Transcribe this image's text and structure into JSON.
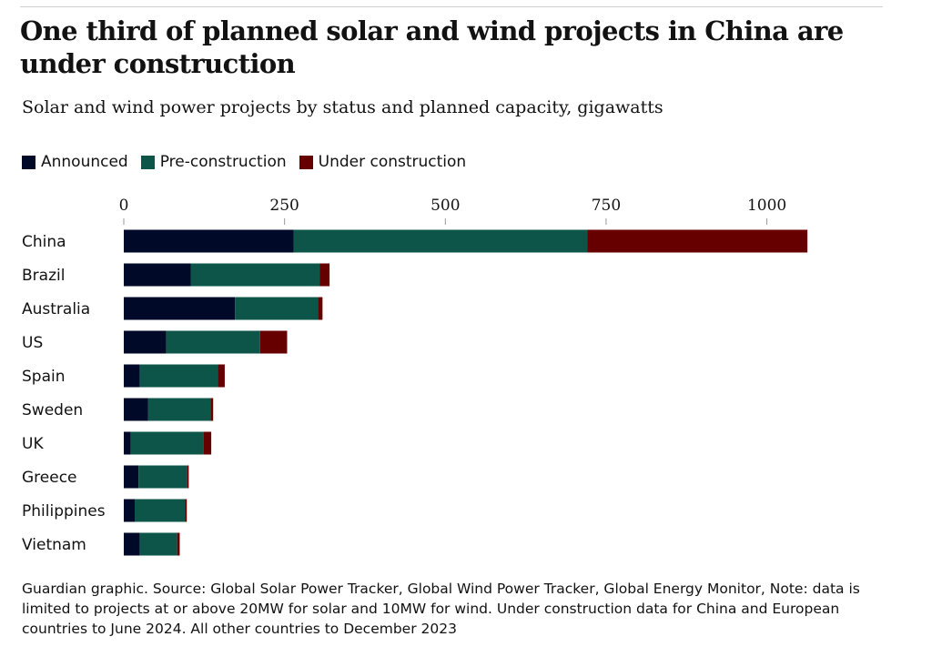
{
  "title": "One third of planned solar and wind projects in China are under construction",
  "subtitle": "Solar and wind power projects by status and planned capacity, gigawatts",
  "source": "Guardian graphic. Source: Global Solar Power Tracker, Global Wind Power Tracker, Global Energy Monitor, Note: data is limited to projects at or above 20MW for solar and 10MW for wind. Under construction data for China and European countries to June 2024. All other countries to December 2023",
  "chart_data": {
    "type": "bar",
    "orientation": "horizontal-stacked",
    "title": "One third of planned solar and wind projects in China are under construction",
    "xlabel": "",
    "ylabel": "",
    "xlim": [
      0,
      1000
    ],
    "xticks": [
      0,
      250,
      500,
      750,
      1000
    ],
    "xtick_labels": [
      "0",
      "250",
      "500",
      "750",
      "1000"
    ],
    "legend_position": "top-left",
    "categories": [
      "China",
      "Brazil",
      "Australia",
      "US",
      "Spain",
      "Sweden",
      "UK",
      "Greece",
      "Philippines",
      "Vietnam"
    ],
    "series": [
      {
        "name": "Announced",
        "color": "#000a28",
        "values": [
          264,
          104,
          173,
          66,
          25,
          38,
          11,
          23,
          17,
          25
        ]
      },
      {
        "name": "Pre-construction",
        "color": "#0d5449",
        "values": [
          457,
          201,
          129,
          146,
          121,
          97,
          113,
          76,
          78,
          58
        ]
      },
      {
        "name": "Under construction",
        "color": "#660000",
        "values": [
          342,
          15,
          7,
          42,
          11,
          4,
          12,
          2,
          3,
          4
        ]
      }
    ]
  }
}
